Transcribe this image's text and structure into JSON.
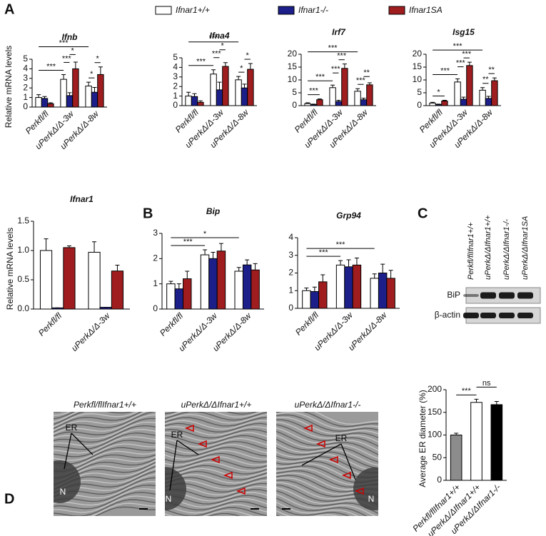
{
  "panels": [
    "A",
    "B",
    "C",
    "D"
  ],
  "legend": [
    {
      "name": "Ifnar1+/+",
      "color": "#ffffff"
    },
    {
      "name": "Ifnar1-/-",
      "color": "#1c1f8a"
    },
    {
      "name": "Ifnar1SA",
      "color": "#a01d1f"
    }
  ],
  "chart_data": [
    {
      "type": "bar",
      "title": "Ifnb",
      "y_label": "Relative mRNA levels",
      "categories": [
        "Perkfl/fl",
        "uPerkΔ/Δ-3w",
        "uPerkΔ/Δ-8w"
      ],
      "series": [
        {
          "values": [
            1.0,
            2.9,
            2.2
          ],
          "errors": [
            0.3,
            0.5,
            0.4
          ]
        },
        {
          "values": [
            0.9,
            1.2,
            1.55
          ],
          "errors": [
            0.2,
            0.3,
            0.5
          ]
        },
        {
          "values": [
            0.35,
            4.0,
            3.4
          ],
          "errors": [
            0.1,
            0.7,
            0.8
          ]
        }
      ],
      "ylim": [
        0,
        5
      ],
      "yticks": [
        0,
        1,
        2,
        3,
        4,
        5
      ],
      "significance": [
        {
          "bars": [
            0,
            3
          ],
          "label": "***"
        },
        {
          "bars": [
            3,
            4
          ],
          "label": "***"
        },
        {
          "bars": [
            4,
            5
          ],
          "label": "*"
        },
        {
          "bars": [
            6,
            7
          ],
          "label": "*"
        },
        {
          "bars": [
            7,
            8
          ],
          "label": "*"
        },
        {
          "bars": [
            0,
            6
          ],
          "label": "***"
        }
      ]
    },
    {
      "type": "bar",
      "title": "Ifna4",
      "categories": [
        "Perkfl/fl",
        "uPerkΔ/Δ-3w",
        "uPerkΔ/Δ-8w"
      ],
      "series": [
        {
          "values": [
            1.0,
            3.3,
            2.7
          ],
          "errors": [
            0.4,
            0.45,
            0.35
          ]
        },
        {
          "values": [
            0.95,
            1.65,
            1.85
          ],
          "errors": [
            0.3,
            0.8,
            0.4
          ]
        },
        {
          "values": [
            0.35,
            4.1,
            3.8
          ],
          "errors": [
            0.15,
            0.4,
            0.6
          ]
        }
      ],
      "ylim": [
        0,
        5
      ],
      "yticks": [
        0,
        1,
        2,
        3,
        4,
        5
      ],
      "significance": [
        {
          "bars": [
            0,
            3
          ],
          "label": "***"
        },
        {
          "bars": [
            3,
            4
          ],
          "label": "***"
        },
        {
          "bars": [
            4,
            5
          ],
          "label": "*"
        },
        {
          "bars": [
            6,
            7
          ],
          "label": "*"
        },
        {
          "bars": [
            7,
            8
          ],
          "label": "*"
        },
        {
          "bars": [
            0,
            6
          ],
          "label": "***"
        }
      ]
    },
    {
      "type": "bar",
      "title": "Irf7",
      "categories": [
        "Perkfl/fl",
        "uPerkΔ/Δ-3w",
        "uPerkΔ/Δ-8w"
      ],
      "series": [
        {
          "values": [
            0.8,
            7.0,
            5.6
          ],
          "errors": [
            0.3,
            1.0,
            1.0
          ]
        },
        {
          "values": [
            0.4,
            1.6,
            2.3
          ],
          "errors": [
            0.2,
            0.5,
            0.6
          ]
        },
        {
          "values": [
            2.3,
            14.5,
            8.1
          ],
          "errors": [
            0.3,
            1.7,
            0.8
          ]
        }
      ],
      "ylim": [
        0,
        20
      ],
      "yticks": [
        0,
        5,
        10,
        15,
        20
      ],
      "significance": [
        {
          "bars": [
            0,
            2
          ],
          "label": "***"
        },
        {
          "bars": [
            0,
            3
          ],
          "label": "***"
        },
        {
          "bars": [
            3,
            4
          ],
          "label": "***"
        },
        {
          "bars": [
            4,
            5
          ],
          "label": "***"
        },
        {
          "bars": [
            6,
            7
          ],
          "label": "***"
        },
        {
          "bars": [
            7,
            8
          ],
          "label": "**"
        },
        {
          "bars": [
            0,
            6
          ],
          "label": "***"
        }
      ]
    },
    {
      "type": "bar",
      "title": "Isg15",
      "categories": [
        "Perkfl/fl",
        "uPerkΔ/Δ-3w",
        "uPerkΔ/Δ-8w"
      ],
      "series": [
        {
          "values": [
            1.0,
            9.2,
            6.0
          ],
          "errors": [
            0.3,
            1.2,
            1.0
          ]
        },
        {
          "values": [
            0.4,
            2.5,
            2.8
          ],
          "errors": [
            0.2,
            0.8,
            0.8
          ]
        },
        {
          "values": [
            1.8,
            15.6,
            9.7
          ],
          "errors": [
            0.3,
            1.3,
            1.1
          ]
        }
      ],
      "ylim": [
        0,
        20
      ],
      "yticks": [
        0,
        5,
        10,
        15,
        20
      ],
      "significance": [
        {
          "bars": [
            0,
            2
          ],
          "label": "*"
        },
        {
          "bars": [
            0,
            3
          ],
          "label": "***"
        },
        {
          "bars": [
            3,
            4
          ],
          "label": "***"
        },
        {
          "bars": [
            4,
            5
          ],
          "label": "***"
        },
        {
          "bars": [
            6,
            7
          ],
          "label": "**"
        },
        {
          "bars": [
            7,
            8
          ],
          "label": "**"
        },
        {
          "bars": [
            0,
            6
          ],
          "label": "***"
        }
      ]
    },
    {
      "type": "bar",
      "title": "Ifnar1",
      "y_label": "Relative mRNA levels",
      "categories": [
        "Perkfl/fl",
        "uPerkΔ/Δ-3w"
      ],
      "series": [
        {
          "values": [
            1.0,
            0.97
          ],
          "errors": [
            0.2,
            0.18
          ]
        },
        {
          "values": [
            0.02,
            0.03
          ],
          "errors": [
            0,
            0
          ]
        },
        {
          "values": [
            1.05,
            0.65
          ],
          "errors": [
            0.03,
            0.1
          ]
        }
      ],
      "ylim": [
        0,
        1.5
      ],
      "yticks": [
        {
          "value": 0,
          "label": "0.0"
        },
        {
          "value": 0.5,
          "label": "0.5"
        },
        {
          "value": 1,
          "label": "1.0"
        },
        {
          "value": 1.5,
          "label": "1.5"
        }
      ],
      "significance": []
    },
    {
      "type": "bar",
      "title": "Bip",
      "categories": [
        "Perkfl/fl",
        "uPerkΔ/Δ-3w",
        "uPerkΔ/Δ-8w"
      ],
      "series": [
        {
          "values": [
            1.0,
            2.15,
            1.5
          ],
          "errors": [
            0.1,
            0.2,
            0.15
          ]
        },
        {
          "values": [
            0.8,
            2.0,
            1.75
          ],
          "errors": [
            0.2,
            0.25,
            0.2
          ]
        },
        {
          "values": [
            1.2,
            2.3,
            1.55
          ],
          "errors": [
            0.3,
            0.3,
            0.25
          ]
        }
      ],
      "ylim": [
        0,
        3
      ],
      "yticks": [
        0,
        1,
        2,
        3
      ],
      "significance": [
        {
          "bars": [
            0,
            3
          ],
          "label": "***"
        },
        {
          "bars": [
            0,
            6
          ],
          "label": "*"
        }
      ]
    },
    {
      "type": "bar",
      "title": "Grp94",
      "categories": [
        "Perkfl/fl",
        "uPerkΔ/Δ-3w",
        "uPerkΔ/Δ-8w"
      ],
      "series": [
        {
          "values": [
            1.0,
            2.45,
            1.7
          ],
          "errors": [
            0.15,
            0.25,
            0.25
          ]
        },
        {
          "values": [
            0.95,
            2.35,
            2.0
          ],
          "errors": [
            0.25,
            0.4,
            0.5
          ]
        },
        {
          "values": [
            1.5,
            2.45,
            1.7
          ],
          "errors": [
            0.4,
            0.4,
            0.45
          ]
        }
      ],
      "ylim": [
        0,
        4
      ],
      "yticks": [
        0,
        1,
        2,
        3,
        4
      ],
      "significance": [
        {
          "bars": [
            0,
            3
          ],
          "label": "***"
        },
        {
          "bars": [
            0,
            6
          ],
          "label": "***"
        }
      ]
    },
    {
      "type": "bar",
      "y_label": "Average ER diameter (%)",
      "categories": [
        "Perkfl/flIfnar1+/+",
        "uPerkΔ/ΔIfnar1+/+",
        "uPerkΔ/ΔIfnar1-/-"
      ],
      "values": [
        100,
        172,
        167
      ],
      "errors": [
        4,
        7,
        7
      ],
      "colors": [
        "#8c8c8c",
        "#ffffff",
        "#000000"
      ],
      "ylim": [
        0,
        200
      ],
      "yticks": [
        0,
        50,
        100,
        150,
        200
      ],
      "significance": [
        {
          "bars": [
            0,
            1
          ],
          "label": "***"
        },
        {
          "bars": [
            1,
            2
          ],
          "label": "ns"
        }
      ]
    }
  ],
  "blot": {
    "lanes": [
      "Perkfl/flIfnar1+/+",
      "uPerkΔ/ΔIfnar1+/+",
      "uPerkΔ/ΔIfnar1-/-",
      "uPerkΔ/ΔIfnar1SA"
    ],
    "rows": [
      "BiP",
      "β-actin"
    ]
  },
  "micrographs": [
    {
      "title": "Perkfl/flIfnar1+/+",
      "labels": [
        "ER",
        "N"
      ]
    },
    {
      "title": "uPerkΔ/ΔIfnar1+/+",
      "labels": [
        "ER",
        "N"
      ]
    },
    {
      "title": "uPerkΔ/ΔIfnar1-/-",
      "labels": [
        "ER",
        "N"
      ]
    }
  ]
}
